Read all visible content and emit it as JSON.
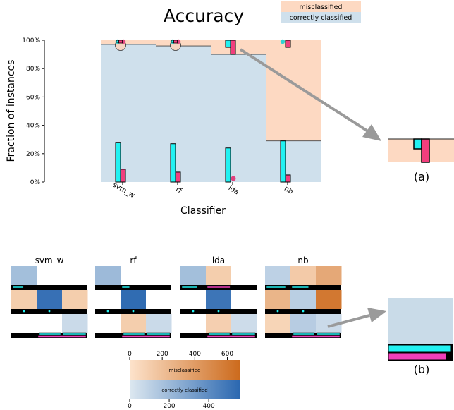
{
  "chart_data": [
    {
      "type": "bar",
      "title": "Accuracy",
      "xlabel": "Classifier",
      "ylabel": "Fraction of instances",
      "ylim": [
        0,
        100
      ],
      "y_tick_labels": [
        "0%",
        "20%",
        "40%",
        "60%",
        "80%",
        "100%"
      ],
      "categories": [
        "svm_w",
        "rf",
        "lda",
        "nb"
      ],
      "legend": {
        "position": "top-right",
        "items": [
          "misclassified",
          "correctly classified"
        ]
      },
      "series": [
        {
          "name": "correctly classified",
          "values": [
            97,
            96,
            90,
            29
          ]
        },
        {
          "name": "misclassified",
          "values": [
            3,
            4,
            10,
            71
          ]
        }
      ],
      "inner_bars": [
        {
          "cyan": 28,
          "magenta": 9,
          "cyan_top": 99,
          "magenta_top": 99,
          "cyan_bottom": 99,
          "magenta_bottom": 99
        },
        {
          "cyan": 27,
          "magenta": 7,
          "cyan_top": 99,
          "magenta_top": 99,
          "cyan_bottom": 98,
          "magenta_bottom": 99
        },
        {
          "cyan": 24,
          "magenta": 2,
          "cyan_top": 99,
          "magenta_top": 100,
          "cyan_bottom": 95,
          "magenta_bottom": 90
        },
        {
          "cyan": 29,
          "magenta": 5,
          "cyan_top": 99,
          "magenta_top": 100,
          "cyan_bottom": 99,
          "magenta_bottom": 95
        }
      ],
      "annotation": "(a)"
    },
    {
      "type": "heatmap",
      "panels": [
        "svm_w",
        "rf",
        "lda",
        "nb"
      ],
      "colorbars": [
        {
          "label": "misclassified",
          "ticks": [
            "0",
            "200",
            "400",
            "600"
          ],
          "max": 680,
          "from": "#fde3cc",
          "to": "#cc6a1c"
        },
        {
          "label": "correctly classified",
          "ticks": [
            "0",
            "200",
            "400"
          ],
          "max": 560,
          "from": "#dde8f0",
          "to": "#2a67b0"
        }
      ],
      "cells": [
        [
          [
            "b",
            180
          ],
          [
            "w",
            0
          ],
          [
            "w",
            0
          ],
          [
            "o",
            120
          ],
          [
            "b",
            520
          ],
          [
            "o",
            120
          ],
          [
            "w",
            0
          ],
          [
            "w",
            0
          ],
          [
            "b",
            60
          ]
        ],
        [
          [
            "b",
            200
          ],
          [
            "w",
            0
          ],
          [
            "w",
            0
          ],
          [
            "w",
            0
          ],
          [
            "b",
            540
          ],
          [
            "w",
            0
          ],
          [
            "w",
            0
          ],
          [
            "o",
            120
          ],
          [
            "b",
            60
          ]
        ],
        [
          [
            "b",
            180
          ],
          [
            "o",
            120
          ],
          [
            "w",
            0
          ],
          [
            "w",
            0
          ],
          [
            "b",
            500
          ],
          [
            "w",
            0
          ],
          [
            "w",
            0
          ],
          [
            "o",
            110
          ],
          [
            "b",
            50
          ]
        ],
        [
          [
            "b",
            100
          ],
          [
            "o",
            140
          ],
          [
            "o",
            330
          ],
          [
            "o",
            260
          ],
          [
            "b",
            110
          ],
          [
            "o",
            600
          ],
          [
            "o",
            80
          ],
          [
            "b",
            120
          ],
          [
            "b",
            60
          ]
        ]
      ],
      "annotation": "(b)"
    }
  ]
}
